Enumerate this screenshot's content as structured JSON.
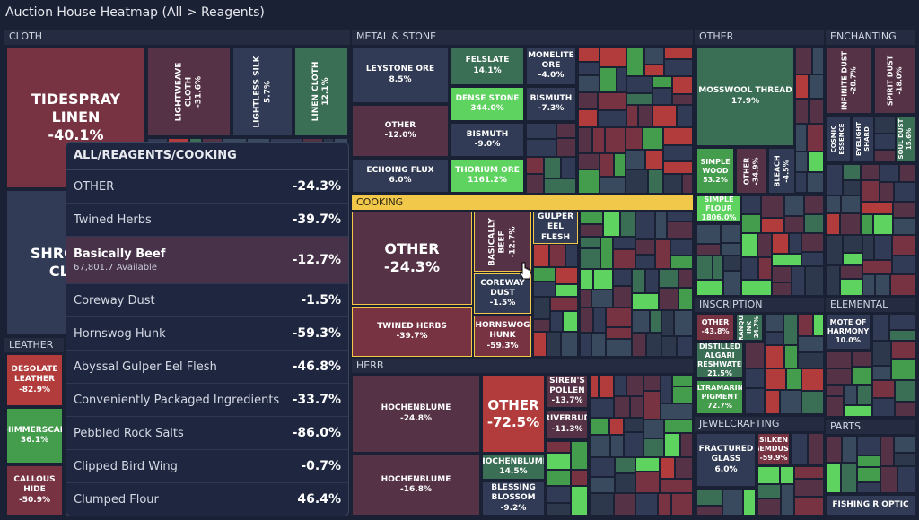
{
  "title": "Auction House Heatmap (All > Reagents)",
  "sections": [
    {
      "name": "CLOTH",
      "tiles": [
        {
          "label": "TIDESPRAY LINEN",
          "value": "-40.1%"
        },
        {
          "label": "LIGHTWEAVE CLOTH",
          "value": "-31.6%"
        },
        {
          "label": "LIGHTLESS SILK",
          "value": "5.7%"
        },
        {
          "label": "LINEN CLOTH",
          "value": "12.1%"
        },
        {
          "label": "SHROUDED CLOTH"
        }
      ]
    },
    {
      "name": "LEATHER",
      "tiles": [
        {
          "label": "DESOLATE LEATHER",
          "value": "-82.9%"
        },
        {
          "label": "SHIMMERSCALE",
          "value": "36.1%"
        },
        {
          "label": "CALLOUS HIDE",
          "value": "-50.9%"
        }
      ]
    },
    {
      "name": "METAL & STONE",
      "tiles": [
        {
          "label": "LEYSTONE ORE",
          "value": "8.5%"
        },
        {
          "label": "OTHER",
          "value": "-12.0%"
        },
        {
          "label": "ECHOING FLUX",
          "value": "6.0%"
        },
        {
          "label": "FELSLATE",
          "value": "14.1%"
        },
        {
          "label": "DENSE STONE",
          "value": "344.0%"
        },
        {
          "label": "BISMUTH",
          "value": "-9.0%"
        },
        {
          "label": "THORIUM ORE",
          "value": "1161.2%"
        },
        {
          "label": "MONELITE ORE",
          "value": "-4.0%"
        },
        {
          "label": "BISMUTH",
          "value": "-7.3%"
        }
      ]
    },
    {
      "name": "COOKING",
      "tiles": [
        {
          "label": "OTHER",
          "value": "-24.3%"
        },
        {
          "label": "TWINED HERBS",
          "value": "-39.7%"
        },
        {
          "label": "BASICALLY BEEF",
          "value": "-12.7%"
        },
        {
          "label": "COREWAY DUST",
          "value": "-1.5%"
        },
        {
          "label": "HORNSWOG HUNK",
          "value": "-59.3%"
        },
        {
          "label": "GULPER EEL FLESH"
        }
      ]
    },
    {
      "name": "HERB",
      "tiles": [
        {
          "label": "HOCHENBLUME",
          "value": "-24.8%"
        },
        {
          "label": "HOCHENBLUME",
          "value": "-16.8%"
        },
        {
          "label": "OTHER",
          "value": "-72.5%"
        },
        {
          "label": "HOCHENBLUME",
          "value": "14.5%"
        },
        {
          "label": "BLESSING BLOSSOM",
          "value": "-9.2%"
        },
        {
          "label": "SIREN'S POLLEN",
          "value": "-13.7%"
        },
        {
          "label": "RIVERBUD",
          "value": "-11.3%"
        }
      ]
    },
    {
      "name": "OTHER",
      "tiles": [
        {
          "label": "MOSSWOOL THREAD",
          "value": "17.9%"
        },
        {
          "label": "SIMPLE WOOD",
          "value": "53.2%"
        },
        {
          "label": "OTHER",
          "value": "-34.9%"
        },
        {
          "label": "BLEACH",
          "value": "-4.5%"
        },
        {
          "label": "SIMPLE FLOUR",
          "value": "1806.0%"
        }
      ]
    },
    {
      "name": "ENCHANTING",
      "tiles": [
        {
          "label": "INFINITE DUST",
          "value": "-28.7%"
        },
        {
          "label": "SPIRIT DUST",
          "value": "-18.0%"
        },
        {
          "label": "COSMIC ESSENCE"
        },
        {
          "label": "EYELIGHT SHARD"
        },
        {
          "label": "SOUL DUST",
          "value": "15.6%"
        }
      ]
    },
    {
      "name": "INSCRIPTION",
      "tiles": [
        {
          "label": "OTHER",
          "value": "-43.8%"
        },
        {
          "label": "TRANQUIL INK",
          "value": "24.7%"
        },
        {
          "label": "DISTILLED ALGARI FRESHWATER",
          "value": "21.5%"
        },
        {
          "label": "ULTRAMARINE PIGMENT",
          "value": "72.7%"
        }
      ]
    },
    {
      "name": "ELEMENTAL",
      "tiles": [
        {
          "label": "MOTE OF HARMONY",
          "value": "10.0%"
        }
      ]
    },
    {
      "name": "JEWELCRAFTING",
      "tiles": [
        {
          "label": "FRACTURED GLASS",
          "value": "6.0%"
        },
        {
          "label": "SILKEN GEMDUST",
          "value": "-59.9%"
        }
      ]
    },
    {
      "name": "PARTS",
      "tiles": [
        {
          "label": "FISHING R OPTIC"
        }
      ]
    }
  ],
  "tooltip": {
    "header": "ALL/REAGENTS/COOKING",
    "rows": [
      {
        "name": "OTHER",
        "value": "-24.3%"
      },
      {
        "name": "Twined Herbs",
        "value": "-39.7%"
      },
      {
        "name": "Basically Beef",
        "detail": "67,801.7 Available",
        "value": "-12.7%"
      },
      {
        "name": "Coreway Dust",
        "value": "-1.5%"
      },
      {
        "name": "Hornswog Hunk",
        "value": "-59.3%"
      },
      {
        "name": "Abyssal Gulper Eel Flesh",
        "value": "-46.8%"
      },
      {
        "name": "Conveniently Packaged Ingredients",
        "value": "-33.7%"
      },
      {
        "name": "Pebbled Rock Salts",
        "value": "-86.0%"
      },
      {
        "name": "Clipped Bird Wing",
        "value": "-0.7%"
      },
      {
        "name": "Clumped Flour",
        "value": "46.4%"
      }
    ]
  }
}
